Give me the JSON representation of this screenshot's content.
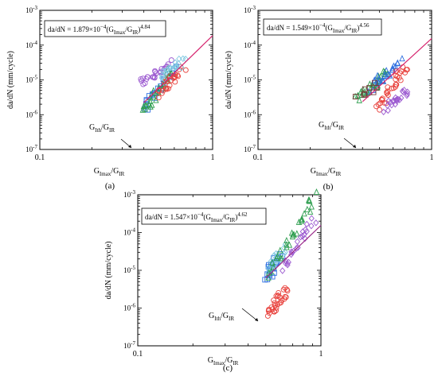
{
  "figure": {
    "panels": [
      {
        "panel_label": "(a)",
        "equation": {
          "lhs": "da/dN = ",
          "coef": "1.879×10",
          "coef_exp": "−4",
          "ratio_open": "(G",
          "num_sub": "Imax",
          "slash": "/G",
          "den_sub": "IR",
          "ratio_close": ")",
          "power": "4.84"
        },
        "threshold_label": {
          "main": "G",
          "sub1": "Ith",
          "slash": "/G",
          "sub2": "IR"
        }
      },
      {
        "panel_label": "(b)",
        "equation": {
          "lhs": "da/dN = ",
          "coef": "1.549×10",
          "coef_exp": "−4",
          "ratio_open": "(G",
          "num_sub": "Imax",
          "slash": "/G",
          "den_sub": "IR",
          "ratio_close": ")",
          "power": "4.56"
        },
        "threshold_label": {
          "main": "G",
          "sub1": "Ith",
          "slash": "/G",
          "sub2": "IR"
        }
      },
      {
        "panel_label": "(c)",
        "equation": {
          "lhs": "da/dN = ",
          "coef": "1.547×10",
          "coef_exp": "−4",
          "ratio_open": "(G",
          "num_sub": "Imax",
          "slash": "/G",
          "den_sub": "IR",
          "ratio_close": ")",
          "power": "4.62"
        },
        "threshold_label": {
          "main": "G",
          "sub1": "Ith",
          "slash": "/G",
          "sub2": "IR"
        }
      }
    ]
  },
  "chart_data": [
    {
      "type": "scatter",
      "panel": "(a)",
      "xscale": "log",
      "yscale": "log",
      "xlim": [
        0.1,
        1
      ],
      "ylim": [
        1e-07,
        0.001
      ],
      "xlabel": {
        "main": "G",
        "sub1": "Imax",
        "slash": "/G",
        "sub2": "IR"
      },
      "ylabel": "da/dN (mm/cycle)",
      "x_ticks": [
        "0.1",
        "1"
      ],
      "y_ticks": [
        {
          "base": "10",
          "exp": "-7"
        },
        {
          "base": "10",
          "exp": "-6"
        },
        {
          "base": "10",
          "exp": "-5"
        },
        {
          "base": "10",
          "exp": "-4"
        },
        {
          "base": "10",
          "exp": "-3"
        }
      ],
      "fit": {
        "coefficient": 0.0001879,
        "exponent": 4.84,
        "x_range": [
          0.4,
          1.0
        ],
        "color": "#d6246e"
      },
      "threshold_value": 0.4,
      "series": [
        {
          "color": "#9b59d0",
          "marker": "circle",
          "x_range": [
            0.38,
            0.58
          ],
          "y_range": [
            8e-06,
            2.8e-05
          ],
          "count": 26
        },
        {
          "color": "#2f6fe0",
          "marker": "square",
          "x_range": [
            0.4,
            0.6
          ],
          "y_range": [
            1.6e-06,
            2e-05
          ],
          "count": 24
        },
        {
          "color": "#2e9e4f",
          "marker": "triangle",
          "x_range": [
            0.4,
            0.58
          ],
          "y_range": [
            1.3e-06,
            1.8e-05
          ],
          "count": 28
        },
        {
          "color": "#e8413c",
          "marker": "circle",
          "x_range": [
            0.48,
            0.68
          ],
          "y_range": [
            4e-06,
            2e-05
          ],
          "count": 26
        },
        {
          "color": "#7fc8e0",
          "marker": "diamond",
          "x_range": [
            0.5,
            0.68
          ],
          "y_range": [
            1.2e-05,
            3.5e-05
          ],
          "count": 20
        }
      ]
    },
    {
      "type": "scatter",
      "panel": "(b)",
      "xscale": "log",
      "yscale": "log",
      "xlim": [
        0.1,
        1
      ],
      "ylim": [
        1e-07,
        0.001
      ],
      "xlabel": {
        "main": "G",
        "sub1": "Imax",
        "slash": "/G",
        "sub2": "IR"
      },
      "ylabel": "da/dN (mm/cycle)",
      "x_ticks": [
        "0.1",
        "1"
      ],
      "y_ticks": [
        {
          "base": "10",
          "exp": "-7"
        },
        {
          "base": "10",
          "exp": "-6"
        },
        {
          "base": "10",
          "exp": "-5"
        },
        {
          "base": "10",
          "exp": "-4"
        },
        {
          "base": "10",
          "exp": "-3"
        }
      ],
      "fit": {
        "coefficient": 0.0001549,
        "exponent": 4.56,
        "x_range": [
          0.4,
          1.0
        ],
        "color": "#d6246e"
      },
      "threshold_value": 0.37,
      "series": [
        {
          "color": "#2e9e4f",
          "marker": "triangle",
          "x_range": [
            0.38,
            0.55
          ],
          "y_range": [
            3e-06,
            1.5e-05
          ],
          "count": 30
        },
        {
          "color": "#2f6fe0",
          "marker": "triangle",
          "x_range": [
            0.45,
            0.66
          ],
          "y_range": [
            6e-06,
            3.5e-05
          ],
          "count": 24
        },
        {
          "color": "#7a3b3b",
          "marker": "square",
          "x_range": [
            0.38,
            0.48
          ],
          "y_range": [
            3.5e-06,
            7e-06
          ],
          "count": 8
        },
        {
          "color": "#e8413c",
          "marker": "circle",
          "x_range": [
            0.5,
            0.7
          ],
          "y_range": [
            1.5e-06,
            2.5e-05
          ],
          "count": 32
        },
        {
          "color": "#9b59d0",
          "marker": "diamond",
          "x_range": [
            0.55,
            0.72
          ],
          "y_range": [
            1.5e-06,
            5e-06
          ],
          "count": 22
        }
      ]
    },
    {
      "type": "scatter",
      "panel": "(c)",
      "xscale": "log",
      "yscale": "log",
      "xlim": [
        0.1,
        1
      ],
      "ylim": [
        1e-07,
        0.001
      ],
      "xlabel": {
        "main": "G",
        "sub1": "Imax",
        "slash": "/G",
        "sub2": "IR"
      },
      "ylabel": "da/dN (mm/cycle)",
      "x_ticks": [
        "0.1",
        "1"
      ],
      "y_ticks": [
        {
          "base": "10",
          "exp": "-7"
        },
        {
          "base": "10",
          "exp": "-6"
        },
        {
          "base": "10",
          "exp": "-5"
        },
        {
          "base": "10",
          "exp": "-4"
        },
        {
          "base": "10",
          "exp": "-3"
        }
      ],
      "fit": {
        "coefficient": 0.0001547,
        "exponent": 4.62,
        "x_range": [
          0.5,
          1.0
        ],
        "color": "#9b2a8a"
      },
      "threshold_value": 0.52,
      "series": [
        {
          "color": "#2f6fe0",
          "marker": "square",
          "x_range": [
            0.5,
            0.6
          ],
          "y_range": [
            6e-06,
            2.5e-05
          ],
          "count": 24
        },
        {
          "color": "#7fc8e0",
          "marker": "diamond",
          "x_range": [
            0.52,
            0.62
          ],
          "y_range": [
            1e-05,
            4e-05
          ],
          "count": 18
        },
        {
          "color": "#2e9e4f",
          "marker": "triangle",
          "x_range": [
            0.52,
            0.92
          ],
          "y_range": [
            8e-06,
            0.0009
          ],
          "count": 32
        },
        {
          "color": "#9b59d0",
          "marker": "diamond",
          "x_range": [
            0.62,
            0.92
          ],
          "y_range": [
            1e-05,
            0.00022
          ],
          "count": 24
        },
        {
          "color": "#e8413c",
          "marker": "circle",
          "x_range": [
            0.52,
            0.64
          ],
          "y_range": [
            7e-07,
            3e-06
          ],
          "count": 30
        }
      ]
    }
  ]
}
